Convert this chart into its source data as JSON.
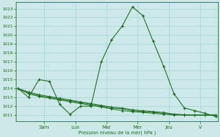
{
  "bg_color": "#cce8e8",
  "grid_color": "#99cccc",
  "line_color": "#1a6b1a",
  "ylabel": "Pression niveau de la mer( hPa )",
  "ylim": [
    1010.3,
    1023.7
  ],
  "yticks": [
    1011,
    1012,
    1013,
    1014,
    1015,
    1016,
    1017,
    1018,
    1019,
    1020,
    1021,
    1022,
    1023
  ],
  "day_labels": [
    "Sam",
    "Lun",
    "Mar",
    "Mer",
    "Jeu",
    "V"
  ],
  "day_positions": [
    2.5,
    5.5,
    8.5,
    11.5,
    14.5,
    17.5
  ],
  "xlim": [
    -0.2,
    19.2
  ],
  "series0": [
    1014.0,
    1013.0,
    1015.0,
    1014.8,
    1012.2,
    1011.1,
    1012.0,
    1012.0,
    1017.0,
    1019.5,
    1021.0,
    1023.2,
    1022.2,
    1019.3,
    1016.5,
    1013.4,
    1011.8,
    1011.5,
    1011.2,
    1010.85
  ],
  "series1": [
    1014.0,
    1013.4,
    1013.1,
    1012.9,
    1012.7,
    1012.5,
    1012.3,
    1012.1,
    1011.9,
    1011.7,
    1011.5,
    1011.4,
    1011.3,
    1011.2,
    1011.1,
    1011.0,
    1011.0,
    1011.0,
    1011.0,
    1011.0
  ],
  "series2": [
    1014.0,
    1013.5,
    1013.2,
    1013.0,
    1012.8,
    1012.6,
    1012.4,
    1012.2,
    1012.0,
    1011.8,
    1011.7,
    1011.5,
    1011.4,
    1011.3,
    1011.2,
    1011.1,
    1011.0,
    1011.0,
    1011.0,
    1011.0
  ],
  "series3": [
    1014.0,
    1013.6,
    1013.3,
    1013.1,
    1012.9,
    1012.7,
    1012.5,
    1012.3,
    1012.1,
    1011.9,
    1011.8,
    1011.6,
    1011.5,
    1011.4,
    1011.3,
    1011.1,
    1011.05,
    1011.0,
    1011.0,
    1011.0
  ]
}
